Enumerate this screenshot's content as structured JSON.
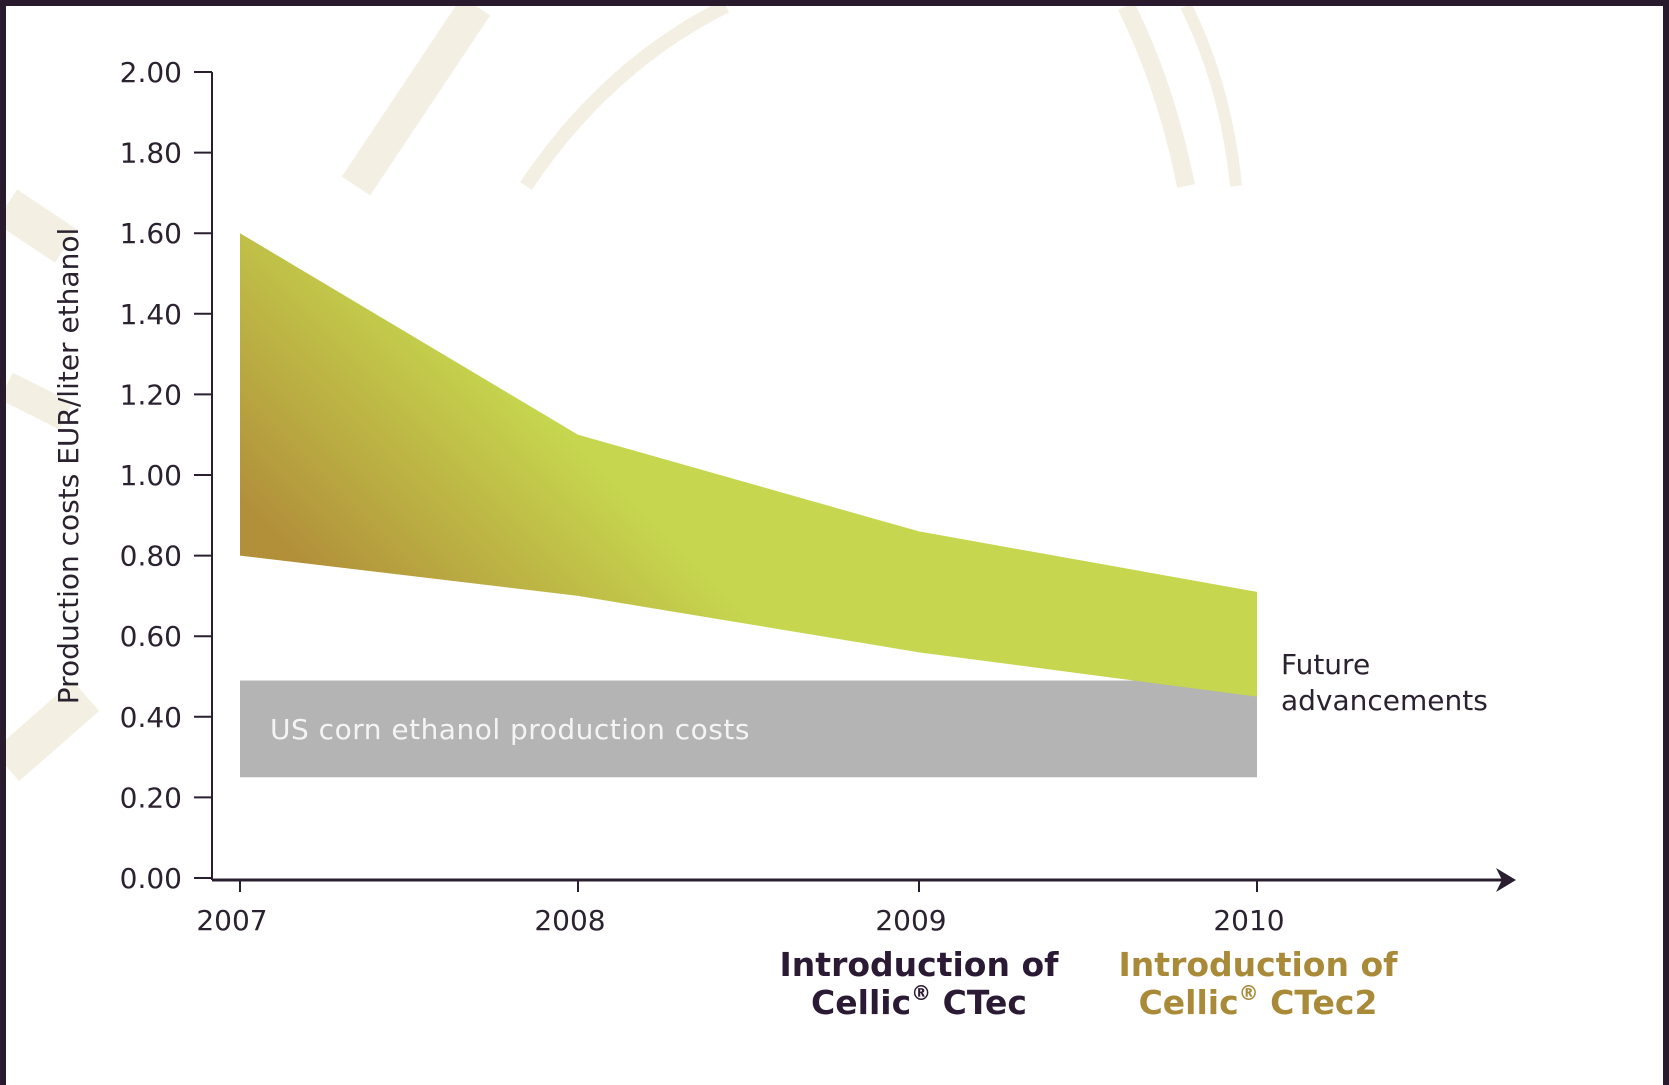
{
  "chart_data": {
    "type": "area",
    "ylabel": "Production costs EUR/liter ethanol",
    "xlabel": "",
    "ylim": [
      0,
      2.0
    ],
    "yticks": [
      "0.00",
      "0.20",
      "0.40",
      "0.60",
      "0.80",
      "1.00",
      "1.20",
      "1.40",
      "1.60",
      "1.80",
      "2.00"
    ],
    "x": [
      "2007",
      "2008",
      "2009",
      "2010"
    ],
    "series": [
      {
        "upper": [
          1.6,
          1.1,
          0.86,
          0.71
        ],
        "lower": [
          0.8,
          0.7,
          0.56,
          0.45
        ]
      }
    ],
    "reference_band": {
      "label": "US corn ethanol production costs",
      "from": 0.25,
      "to": 0.49
    },
    "annotations": {
      "future": [
        "Future",
        "advancements"
      ],
      "ctec": {
        "line1": "Introduction of",
        "line2": "Cellic",
        "sup": "®",
        "line2b": " CTec"
      },
      "ctec2": {
        "line1": "Introduction of",
        "line2": "Cellic",
        "sup": "®",
        "line2b": " CTec2"
      }
    },
    "colors": {
      "band_top": "#c6d64e",
      "band_bottom": "#b2903a",
      "reference": "#b4b4b4",
      "axis": "#2a1f30",
      "ctec": "#2a1a34",
      "ctec2": "#a98a38"
    },
    "grid": false,
    "legend": "none"
  }
}
